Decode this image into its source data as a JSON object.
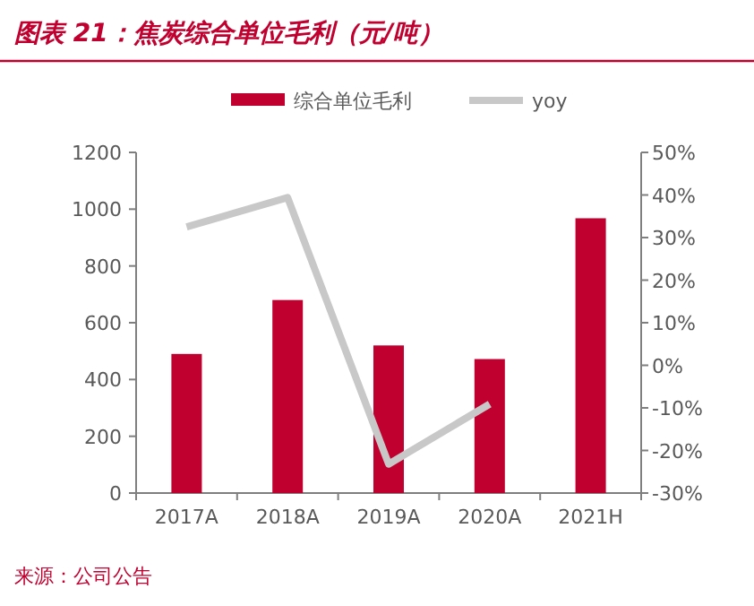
{
  "chart_data": {
    "type": "bar",
    "title": "图表 21：焦炭综合单位毛利（元/吨）",
    "categories": [
      "2017A",
      "2018A",
      "2019A",
      "2020A",
      "2021H"
    ],
    "series": [
      {
        "name": "综合单位毛利",
        "color": "#c0002f",
        "values": [
          490,
          680,
          520,
          472,
          968
        ]
      },
      {
        "name": "yoy",
        "type": "line",
        "axis": "y2",
        "color": "#c8c8c8",
        "values": [
          32.5,
          39.4,
          -23.2,
          -9.1,
          null
        ]
      }
    ],
    "ylim": [
      0,
      1200
    ],
    "yticks": [
      0,
      200,
      400,
      600,
      800,
      1000,
      1200
    ],
    "y2lim": [
      -30,
      50
    ],
    "y2ticks": [
      {
        "value": -30,
        "label": "-30%"
      },
      {
        "value": -20,
        "label": "-20%"
      },
      {
        "value": -10,
        "label": "-10%"
      },
      {
        "value": 0,
        "label": "0%"
      },
      {
        "value": 10,
        "label": "10%"
      },
      {
        "value": 20,
        "label": "20%"
      },
      {
        "value": 30,
        "label": "30%"
      },
      {
        "value": 40,
        "label": "40%"
      },
      {
        "value": 50,
        "label": "50%"
      }
    ],
    "legend": "top",
    "annotations": [
      "来源：公司公告"
    ]
  }
}
